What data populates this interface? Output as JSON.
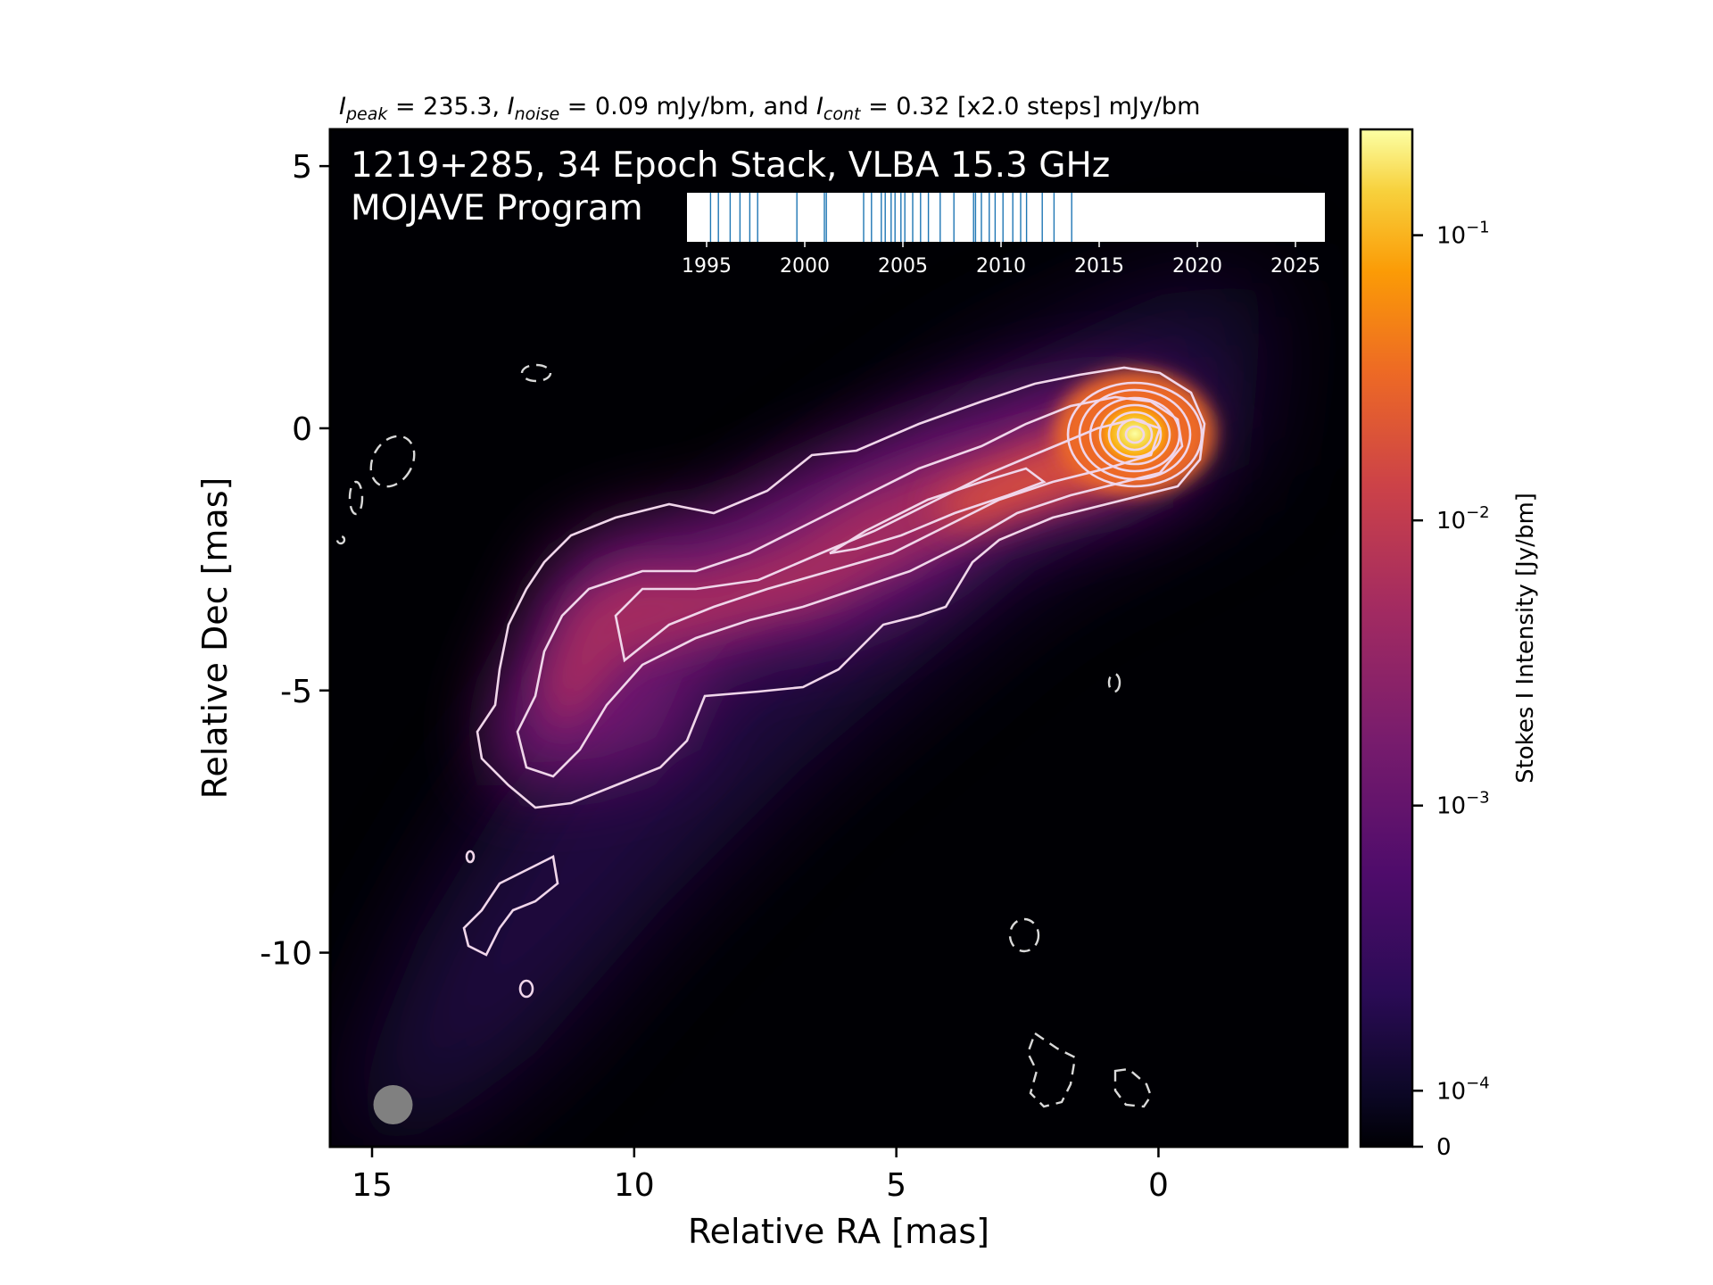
{
  "chart_data": {
    "type": "heatmap",
    "title_line": {
      "peak_symbol": "I",
      "peak_sub": "peak",
      "peak_value": "= 235.3,",
      "noise_symbol": "I",
      "noise_sub": "noise",
      "noise_value": "= 0.09 mJy/bm, and",
      "cont_symbol": "I",
      "cont_sub": "cont",
      "cont_value": "= 0.32 [x2.0 steps] mJy/bm"
    },
    "overlay_title": [
      "1219+285, 34 Epoch Stack, VLBA 15.3 GHz",
      "MOJAVE Program"
    ],
    "xlabel": "Relative RA [mas]",
    "ylabel": "Relative Dec [mas]",
    "xlim": [
      15.8,
      -3.6
    ],
    "ylim": [
      -13.7,
      5.7
    ],
    "xticks": [
      15,
      10,
      5,
      0
    ],
    "xtick_labels": [
      "15",
      "10",
      "5",
      "0"
    ],
    "yticks": [
      5,
      0,
      -5,
      -10
    ],
    "ytick_labels": [
      "5",
      "0",
      "-5",
      "-10"
    ],
    "colorbar": {
      "label": "Stokes I Intensity [Jy/bm]",
      "scale": "symlog",
      "colormap": "inferno",
      "ticks": [
        {
          "value": 0.1,
          "base": "10",
          "exp": "−1"
        },
        {
          "value": 0.01,
          "base": "10",
          "exp": "−2"
        },
        {
          "value": 0.001,
          "base": "10",
          "exp": "−3"
        },
        {
          "value": 0.0001,
          "base": "10",
          "exp": "−4"
        },
        {
          "value": 0,
          "base": "0",
          "exp": ""
        }
      ]
    },
    "contour_color": "#f0d6ea",
    "negative_contour_style": "dashed",
    "beam": {
      "x": 14.6,
      "y": -12.9,
      "color": "#808080"
    },
    "epoch_inset": {
      "xlim": [
        1994,
        2026.5
      ],
      "ticks": [
        1995,
        2000,
        2005,
        2010,
        2015,
        2020,
        2025
      ],
      "epochs": [
        1995.2,
        1995.6,
        1996.2,
        1996.7,
        1997.2,
        1997.6,
        1999.6,
        2001.0,
        2001.1,
        2003.0,
        2003.4,
        2003.9,
        2004.1,
        2004.4,
        2004.6,
        2004.9,
        2005.1,
        2005.5,
        2005.9,
        2006.3,
        2006.9,
        2007.6,
        2008.6,
        2008.7,
        2009.0,
        2009.4,
        2009.7,
        2010.1,
        2010.6,
        2011.0,
        2011.3,
        2012.1,
        2012.7,
        2013.6
      ],
      "epoch_color": "#1f77b4"
    }
  }
}
